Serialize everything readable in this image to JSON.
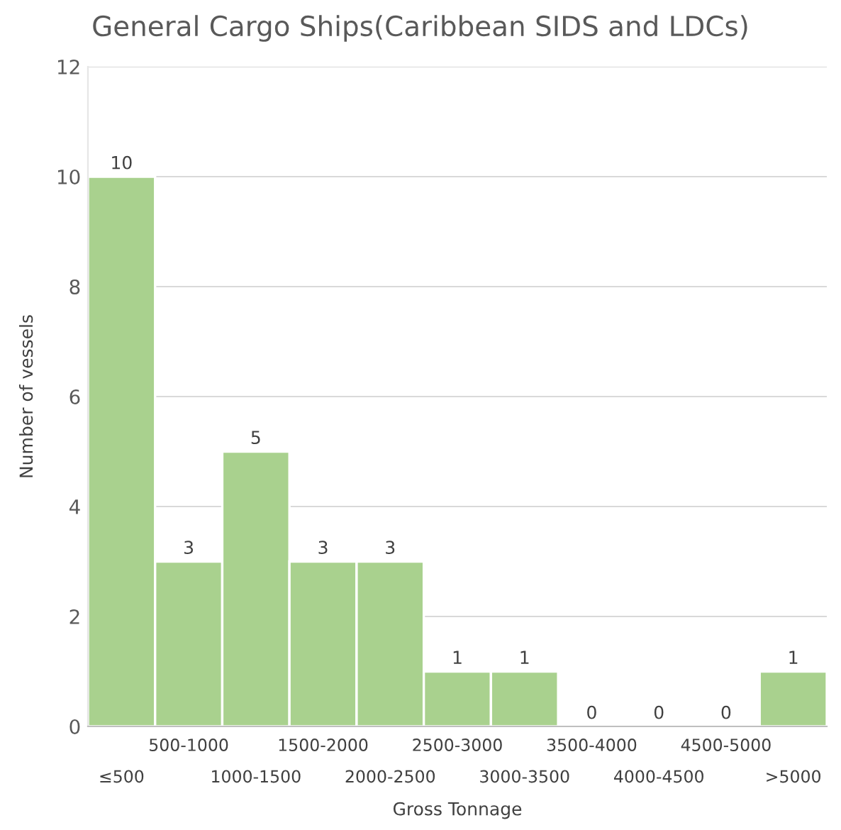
{
  "chart_data": {
    "type": "bar",
    "title": "General Cargo Ships(Caribbean SIDS and LDCs)",
    "xlabel": "Gross Tonnage",
    "ylabel": "Number of vessels",
    "categories": [
      "≤500",
      "500-1000",
      "1000-1500",
      "1500-2000",
      "2000-2500",
      "2500-3000",
      "3000-3500",
      "3500-4000",
      "4000-4500",
      "4500-5000",
      ">5000"
    ],
    "values": [
      10,
      3,
      5,
      3,
      3,
      1,
      1,
      0,
      0,
      0,
      1
    ],
    "color": "#a9d18e",
    "ylim": [
      0,
      12
    ],
    "yticks": [
      0,
      2,
      4,
      6,
      8,
      10,
      12
    ],
    "grid": "y",
    "data_labels": true
  }
}
